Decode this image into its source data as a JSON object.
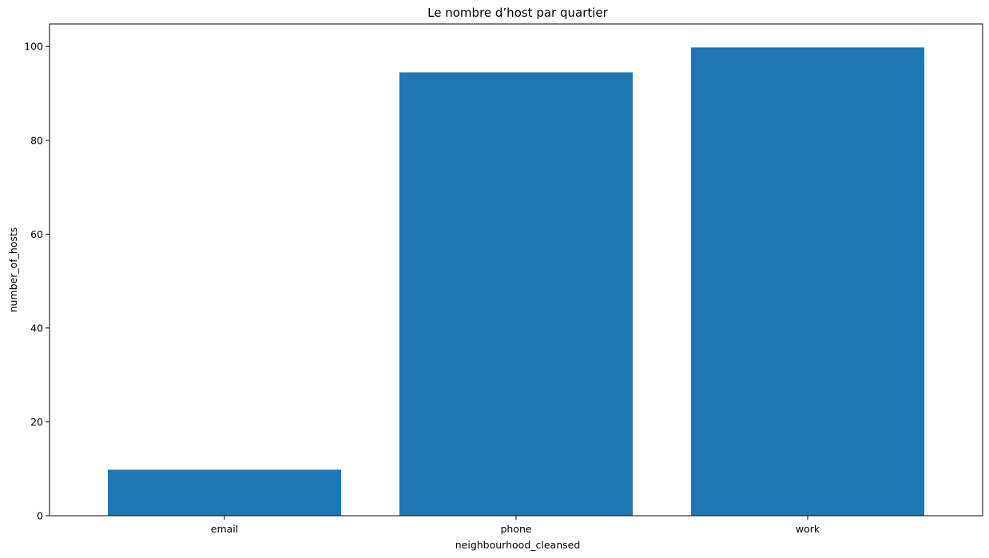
{
  "chart_data": {
    "type": "bar",
    "title": "Le nombre d’host par quartier",
    "xlabel": "neighbourhood_cleansed",
    "ylabel": "number_of_hosts",
    "categories": [
      "email",
      "phone",
      "work"
    ],
    "values": [
      9.8,
      94.5,
      99.8
    ],
    "ylim": [
      0,
      104.8
    ],
    "yticks": [
      0,
      20,
      40,
      60,
      80,
      100
    ],
    "grid": false,
    "bar_color": "#1f77b4"
  }
}
